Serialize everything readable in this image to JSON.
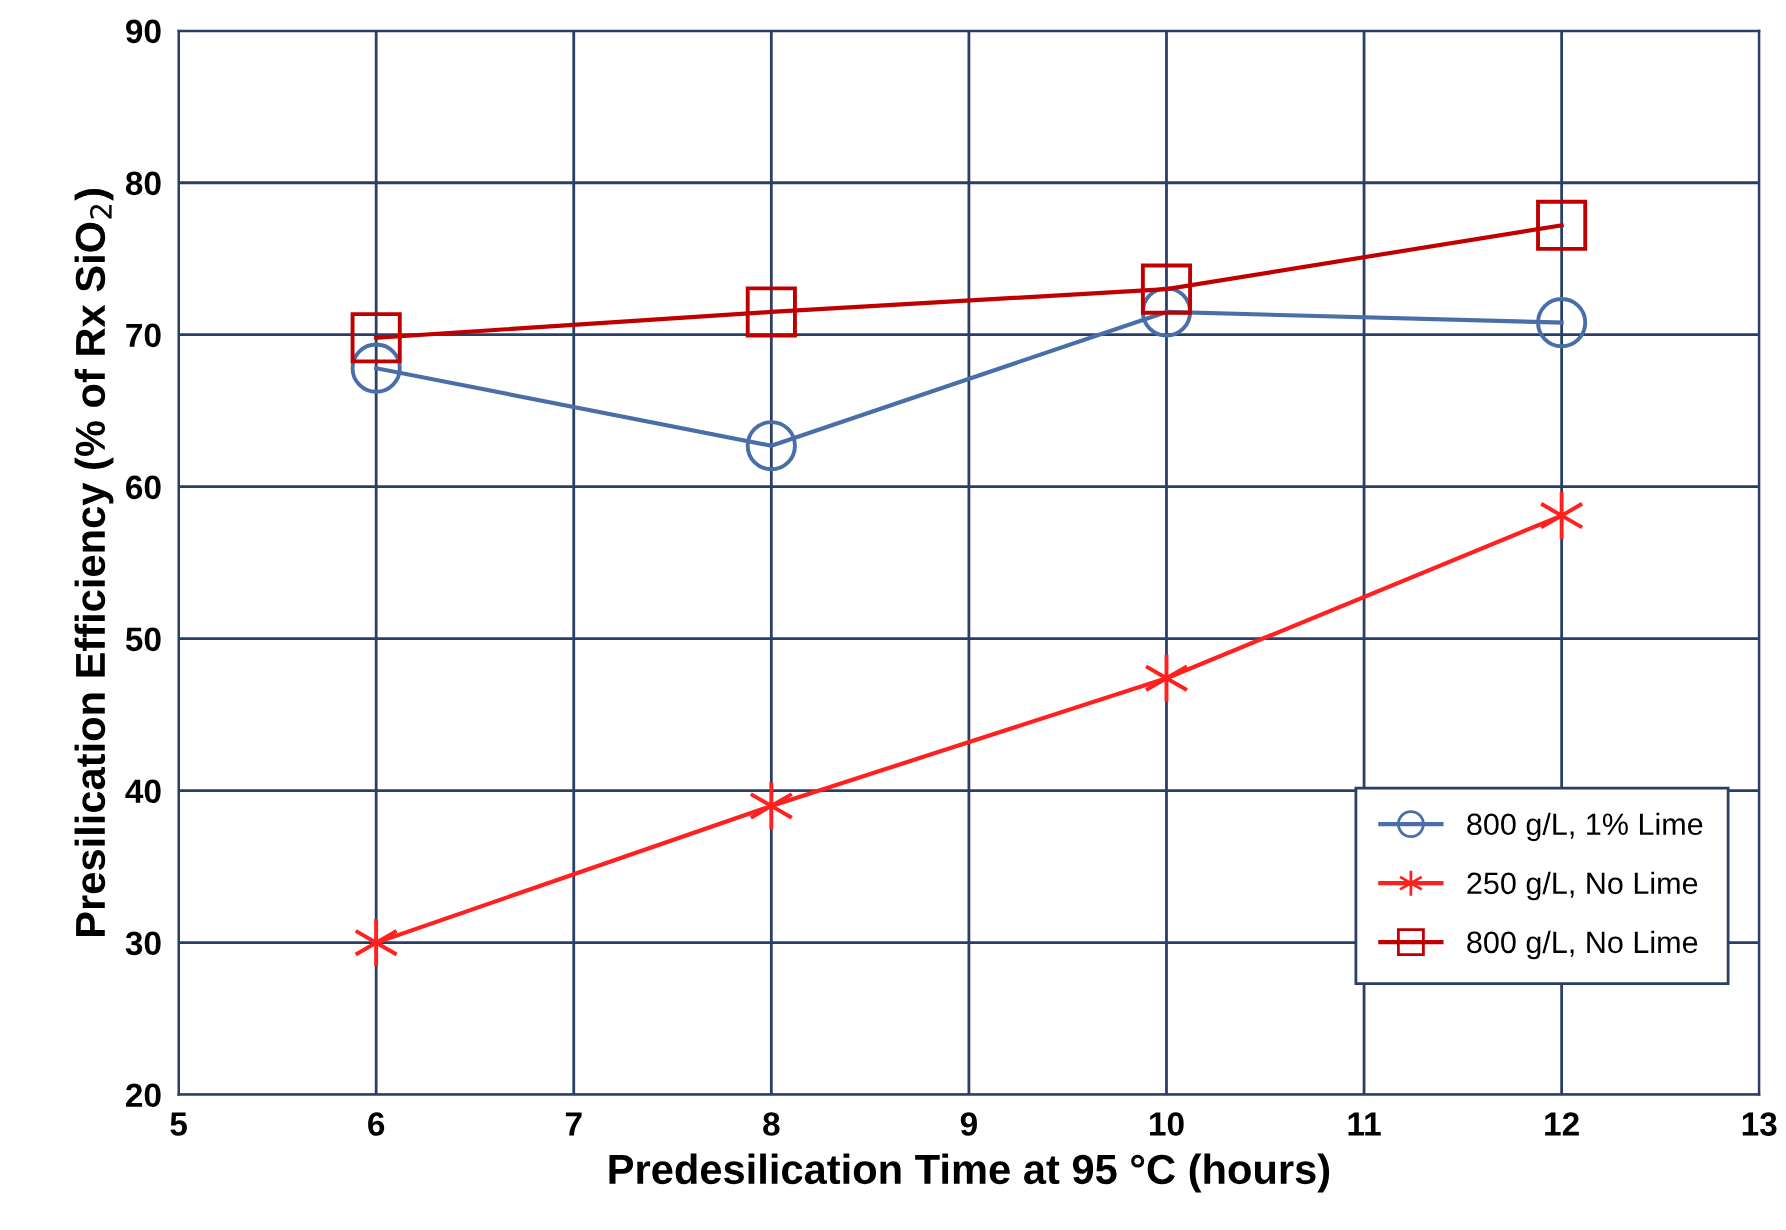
{
  "chart_data": {
    "type": "line",
    "xlabel": "Predesilication Time at 95 °C (hours)",
    "ylabel": "Presilication Efficiency (% of Rx SiO$_{2}$)",
    "x": [
      6,
      8,
      10,
      12
    ],
    "series": [
      {
        "name": "800 g/L, 1% Lime",
        "color": "#4a6fa8",
        "marker": "circle",
        "values": [
          67.8,
          62.7,
          71.5,
          70.8
        ]
      },
      {
        "name": "250 g/L, No Lime",
        "color": "#ff2020",
        "marker": "cross",
        "values": [
          30,
          39,
          47.4,
          58.1
        ]
      },
      {
        "name": "800 g/L, No Lime",
        "color": "#c00000",
        "marker": "square",
        "values": [
          69.8,
          71.5,
          73,
          77.2
        ]
      }
    ],
    "xlim": [
      5,
      13
    ],
    "xticks": [
      5,
      6,
      7,
      8,
      9,
      10,
      11,
      12,
      13
    ],
    "ylim": [
      20,
      90
    ],
    "yticks": [
      20,
      30,
      40,
      50,
      60,
      70,
      80,
      90
    ],
    "grid": true,
    "legend": "lower right",
    "line_style": "solid"
  }
}
